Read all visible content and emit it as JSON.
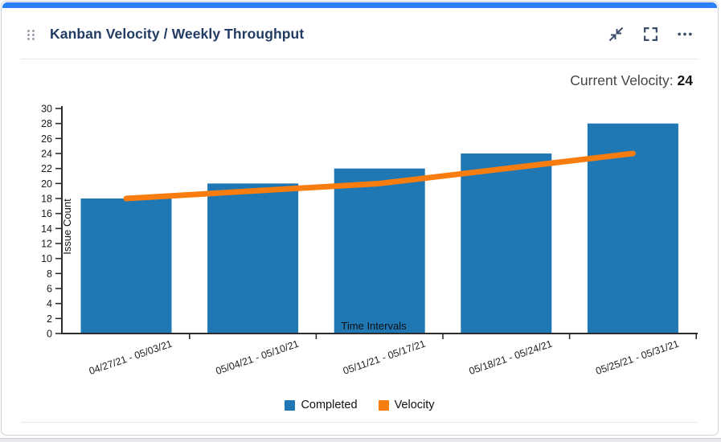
{
  "header": {
    "title": "Kanban Velocity / Weekly Throughput",
    "actions": [
      {
        "icon": "collapse-arrows-icon"
      },
      {
        "icon": "fullscreen-icon"
      },
      {
        "icon": "ellipsis-menu-icon"
      }
    ]
  },
  "stats": {
    "label": "Current Velocity:",
    "value": "24"
  },
  "chart_data": {
    "type": "bar",
    "title": "Kanban Velocity / Weekly Throughput",
    "categories": [
      "04/27/21 - 05/03/21",
      "05/04/21 - 05/10/21",
      "05/11/21 - 05/17/21",
      "05/18/21 - 05/24/21",
      "05/25/21 - 05/31/21"
    ],
    "series": [
      {
        "name": "Completed",
        "type": "bar",
        "color": "#1f77b4",
        "values": [
          18,
          20,
          22,
          24,
          28
        ]
      },
      {
        "name": "Velocity",
        "type": "line",
        "color": "#f97d0e",
        "values": [
          18,
          19,
          20,
          22,
          24
        ]
      }
    ],
    "xlabel": "Time Intervals",
    "ylabel": "Issue Count",
    "ylim": [
      0,
      30
    ],
    "ytick_step": 2,
    "grid": false,
    "legend_position": "bottom"
  },
  "colors": {
    "accent_bar": "#2b7ff7",
    "title_text": "#233c63",
    "bar_fill": "#1f77b4",
    "line_stroke": "#f97d0e",
    "axis": "#2d2d2d"
  }
}
